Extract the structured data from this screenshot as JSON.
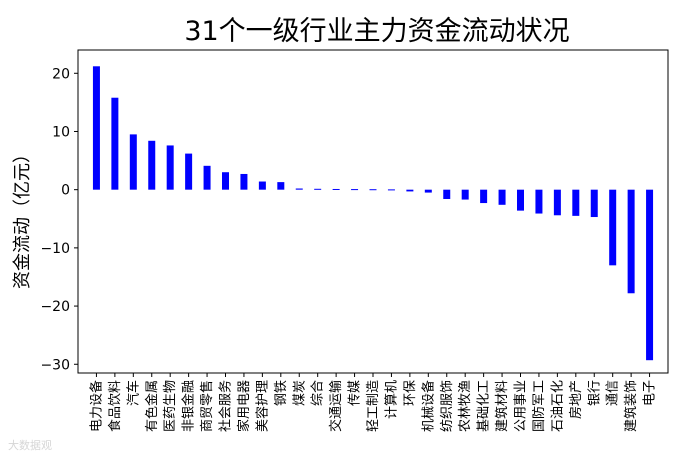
{
  "chart_data": {
    "type": "bar",
    "title": "31个一级行业主力资金流动状况",
    "xlabel": "",
    "ylabel": "资金流动（亿元）",
    "ylim": [
      -31.5,
      24
    ],
    "yticks": [
      -30,
      -20,
      -10,
      0,
      10,
      20
    ],
    "grid": false,
    "legend": "none",
    "bar_color": "#0000ff",
    "categories": [
      "电力设备",
      "食品饮料",
      "汽车",
      "有色金属",
      "医药生物",
      "非银金融",
      "商贸零售",
      "社会服务",
      "家用电器",
      "美容护理",
      "钢铁",
      "煤炭",
      "综合",
      "交通运输",
      "传媒",
      "轻工制造",
      "计算机",
      "环保",
      "机械设备",
      "纺织服饰",
      "农林牧渔",
      "基础化工",
      "建筑材料",
      "公用事业",
      "国防军工",
      "石油石化",
      "房地产",
      "银行",
      "通信",
      "建筑装饰",
      "电子"
    ],
    "values": [
      21.2,
      15.8,
      9.5,
      8.4,
      7.6,
      6.2,
      4.1,
      3.0,
      2.7,
      1.4,
      1.3,
      0.2,
      0.15,
      0.12,
      0.1,
      0.08,
      0.05,
      -0.3,
      -0.5,
      -1.6,
      -1.7,
      -2.3,
      -2.6,
      -3.6,
      -4.1,
      -4.4,
      -4.5,
      -4.7,
      -13.0,
      -17.8,
      -29.3
    ]
  },
  "watermark": "大数据观"
}
